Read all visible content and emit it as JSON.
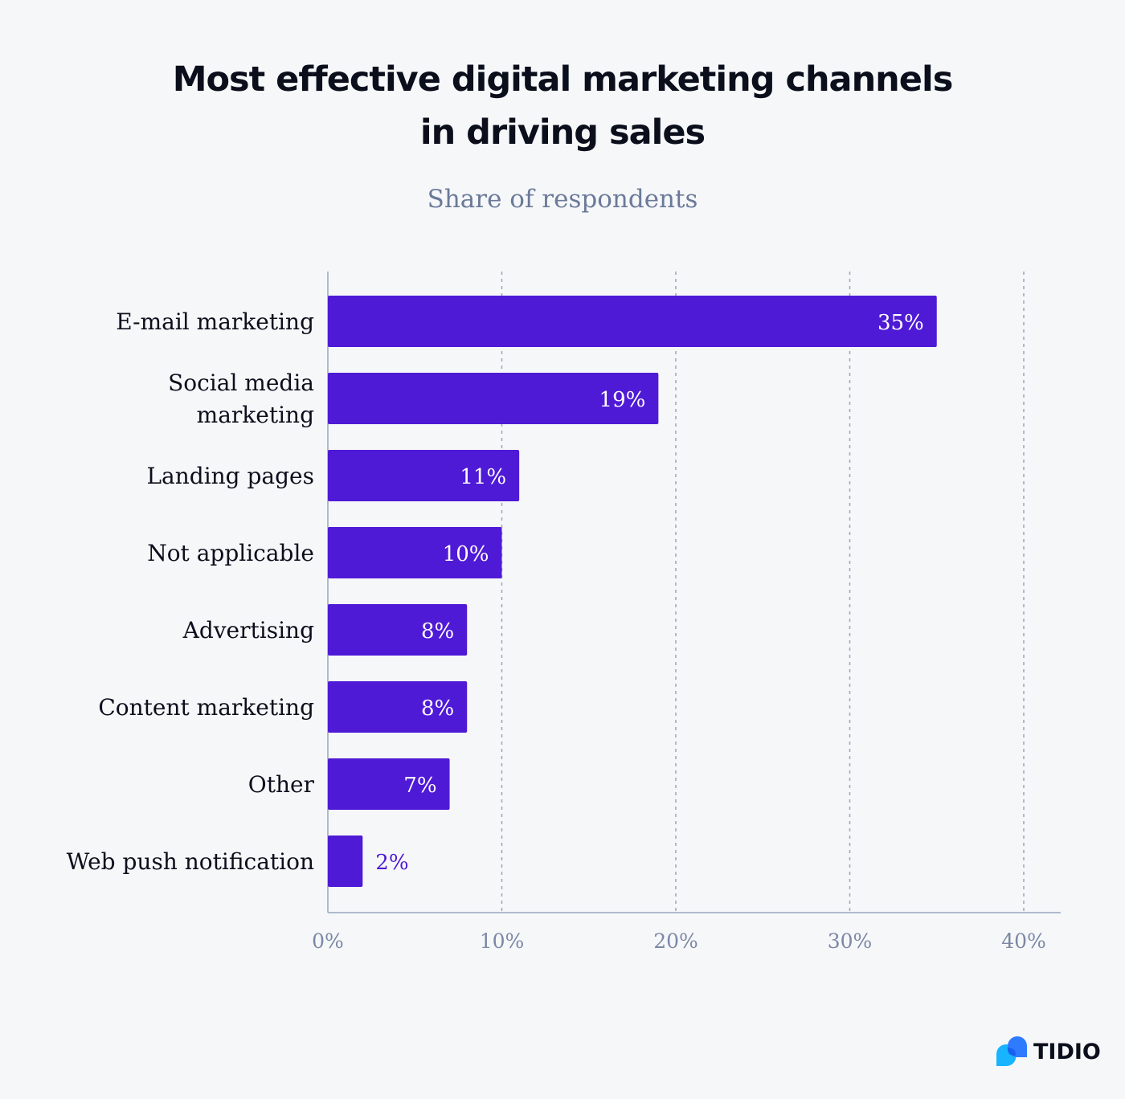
{
  "chart_data": {
    "type": "bar",
    "orientation": "horizontal",
    "title": "Most effective digital marketing channels in driving sales",
    "title_lines": [
      "Most effective digital marketing channels",
      "in driving sales"
    ],
    "subtitle": "Share of respondents",
    "categories": [
      "E-mail marketing",
      "Social media marketing",
      "Landing pages",
      "Not applicable",
      "Advertising",
      "Content marketing",
      "Other",
      "Web push notification"
    ],
    "category_lines": [
      [
        "E-mail marketing"
      ],
      [
        "Social media",
        "marketing"
      ],
      [
        "Landing pages"
      ],
      [
        "Not applicable"
      ],
      [
        "Advertising"
      ],
      [
        "Content marketing"
      ],
      [
        "Other"
      ],
      [
        "Web push notification"
      ]
    ],
    "values": [
      35,
      19,
      11,
      10,
      8,
      8,
      7,
      2
    ],
    "data_labels": [
      "35%",
      "19%",
      "11%",
      "10%",
      "8%",
      "8%",
      "7%",
      "2%"
    ],
    "xlim": [
      0,
      40
    ],
    "x_ticks": [
      "0%",
      "10%",
      "20%",
      "30%",
      "40%"
    ],
    "grid": "vertical dashed",
    "bar_color": "#4f1ad6"
  },
  "brand": {
    "name": "TIDIO",
    "colors": [
      "#2f7bff",
      "#18b4ff"
    ]
  }
}
